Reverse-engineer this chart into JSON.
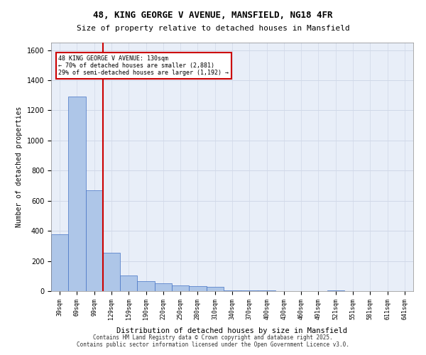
{
  "title_line1": "48, KING GEORGE V AVENUE, MANSFIELD, NG18 4FR",
  "title_line2": "Size of property relative to detached houses in Mansfield",
  "xlabel": "Distribution of detached houses by size in Mansfield",
  "ylabel": "Number of detached properties",
  "footer_line1": "Contains HM Land Registry data © Crown copyright and database right 2025.",
  "footer_line2": "Contains public sector information licensed under the Open Government Licence v3.0.",
  "annotation_line1": "48 KING GEORGE V AVENUE: 130sqm",
  "annotation_line2": "← 70% of detached houses are smaller (2,881)",
  "annotation_line3": "29% of semi-detached houses are larger (1,192) →",
  "bar_color": "#aec6e8",
  "bar_edge_color": "#4472c4",
  "grid_color": "#d0d8e8",
  "background_color": "#e8eef8",
  "annotation_box_color": "#ffffff",
  "annotation_box_edge": "#cc0000",
  "marker_line_color": "#cc0000",
  "categories": [
    "39sqm",
    "69sqm",
    "99sqm",
    "129sqm",
    "159sqm",
    "190sqm",
    "220sqm",
    "250sqm",
    "280sqm",
    "310sqm",
    "340sqm",
    "370sqm",
    "400sqm",
    "430sqm",
    "460sqm",
    "491sqm",
    "521sqm",
    "551sqm",
    "581sqm",
    "611sqm",
    "641sqm"
  ],
  "values": [
    375,
    1290,
    670,
    255,
    105,
    65,
    50,
    40,
    35,
    30,
    5,
    5,
    5,
    0,
    0,
    0,
    5,
    0,
    0,
    0,
    0
  ],
  "ylim": [
    0,
    1650
  ],
  "yticks": [
    0,
    200,
    400,
    600,
    800,
    1000,
    1200,
    1400,
    1600
  ],
  "marker_bin_index": 3,
  "figsize": [
    6.0,
    5.0
  ],
  "dpi": 100
}
